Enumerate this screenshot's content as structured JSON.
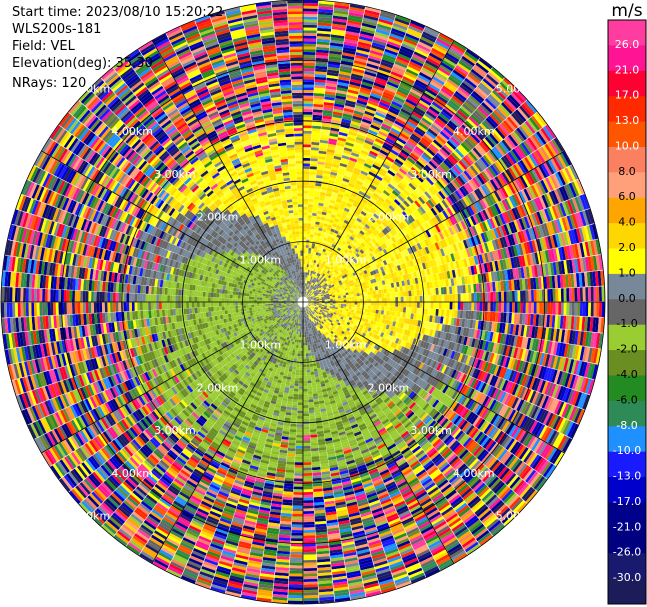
{
  "header": {
    "start_time": "Start time: 2023/08/10 15:20:22",
    "site": "WLS200s-181",
    "field": "Field: VEL",
    "elevation": "Elevation(deg): 35.30",
    "nrays": "NRays: 120"
  },
  "chart_data": {
    "type": "heatmap",
    "subtype": "polar-ppi",
    "field": "VEL",
    "nrays": 120,
    "max_range_km": 5.0,
    "range_rings_km": [
      1.0,
      2.0,
      3.0,
      4.0,
      5.0
    ],
    "range_ring_labels": [
      "1.00km",
      "2.00km",
      "3.00km",
      "4.00km",
      "5.00km"
    ],
    "spoke_angles_deg": [
      0,
      30,
      60,
      90,
      120,
      150,
      180,
      210,
      240,
      270,
      300,
      330
    ],
    "pattern": {
      "inner_range_km": 2.9,
      "approaching_sector": "west (negative velocities, greens)",
      "receding_sector": "east (positive velocities, yellows)",
      "outer_region": "noise (random velocities)"
    },
    "colorbar": {
      "unit": "m/s",
      "tick_labels": [
        "26.0",
        "21.0",
        "17.0",
        "13.0",
        "10.0",
        "8.0",
        "6.0",
        "4.0",
        "2.0",
        "1.0",
        "0.0",
        "-1.0",
        "-2.0",
        "-4.0",
        "-6.0",
        "-8.0",
        "-10.0",
        "-13.0",
        "-17.0",
        "-21.0",
        "-26.0",
        "-30.0"
      ],
      "colors": [
        "#ff3ca0",
        "#ff1493",
        "#ff0033",
        "#ff2a00",
        "#ff5500",
        "#fa8060",
        "#ffa07a",
        "#ffa500",
        "#ffd700",
        "#ffff00",
        "#778899",
        "#666666",
        "#9acd32",
        "#6b8e23",
        "#228b22",
        "#2e8b57",
        "#1e90ff",
        "#1a1aff",
        "#0000cd",
        "#00008b",
        "#000080",
        "#191970",
        "#1c1c5a"
      ]
    }
  }
}
